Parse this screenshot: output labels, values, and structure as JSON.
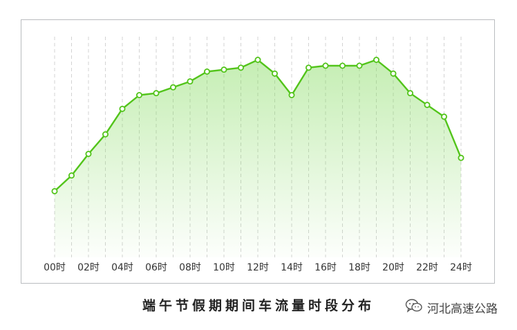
{
  "chart_data": {
    "type": "line",
    "title": "端午节假期期间车流量时段分布",
    "x_tick_labels": [
      "00时",
      "02时",
      "04时",
      "06时",
      "08时",
      "10时",
      "12时",
      "14时",
      "16时",
      "18时",
      "20时",
      "22时",
      "24时"
    ],
    "x": [
      0,
      1,
      2,
      3,
      4,
      5,
      6,
      7,
      8,
      9,
      10,
      11,
      12,
      13,
      14,
      15,
      16,
      17,
      18,
      19,
      20,
      21,
      22,
      23,
      24
    ],
    "values": [
      38,
      46,
      57,
      67,
      80,
      87,
      88,
      91,
      94,
      99,
      100,
      101,
      105,
      98,
      87,
      101,
      102,
      102,
      102,
      105,
      98,
      88,
      82,
      76,
      55
    ],
    "xlim": [
      0,
      24
    ],
    "ylim": [
      0,
      120
    ],
    "grid": "vertical dashed at every hour",
    "colors": {
      "line": "#52c41a",
      "fill": "#7ed957",
      "grid": "#d3d3d3",
      "marker_fill": "#ffffff"
    }
  },
  "caption": "端午节假期期间车流量时段分布",
  "watermark": {
    "icon": "wechat-icon",
    "text": "河北高速公路"
  }
}
